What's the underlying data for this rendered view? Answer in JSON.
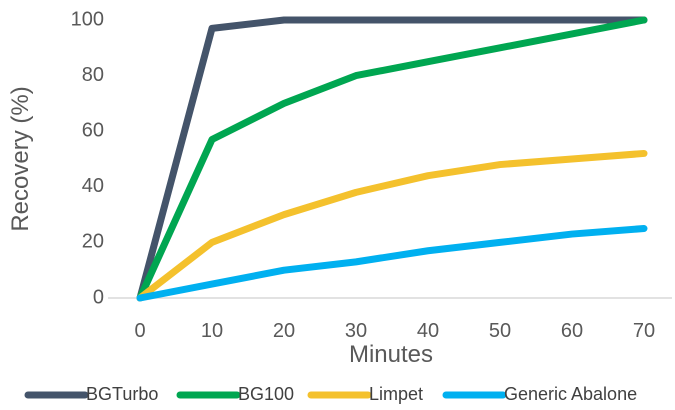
{
  "chart_data": {
    "type": "line",
    "title": "",
    "xlabel": "Minutes",
    "ylabel": "Recovery (%)",
    "x": [
      0,
      10,
      20,
      30,
      40,
      50,
      60,
      70
    ],
    "x_tick_labels": [
      "0",
      "10",
      "20",
      "30",
      "40",
      "50",
      "60",
      "70"
    ],
    "y_tick_labels": [
      "0",
      "20",
      "40",
      "60",
      "80",
      "100"
    ],
    "xlim": [
      0,
      70
    ],
    "ylim": [
      0,
      100
    ],
    "grid": false,
    "legend_position": "bottom",
    "series": [
      {
        "name": "BGTurbo",
        "color": "#44546a",
        "values": [
          0,
          97,
          100,
          100,
          100,
          100,
          100,
          100
        ]
      },
      {
        "name": "BG100",
        "color": "#00a651",
        "values": [
          0,
          57,
          70,
          80,
          85,
          90,
          95,
          100
        ]
      },
      {
        "name": "Limpet",
        "color": "#f4c12d",
        "values": [
          0,
          20,
          30,
          38,
          44,
          48,
          50,
          52
        ]
      },
      {
        "name": "Generic Abalone",
        "color": "#00b0f0",
        "values": [
          0,
          5,
          10,
          13,
          17,
          20,
          23,
          25
        ]
      }
    ]
  }
}
